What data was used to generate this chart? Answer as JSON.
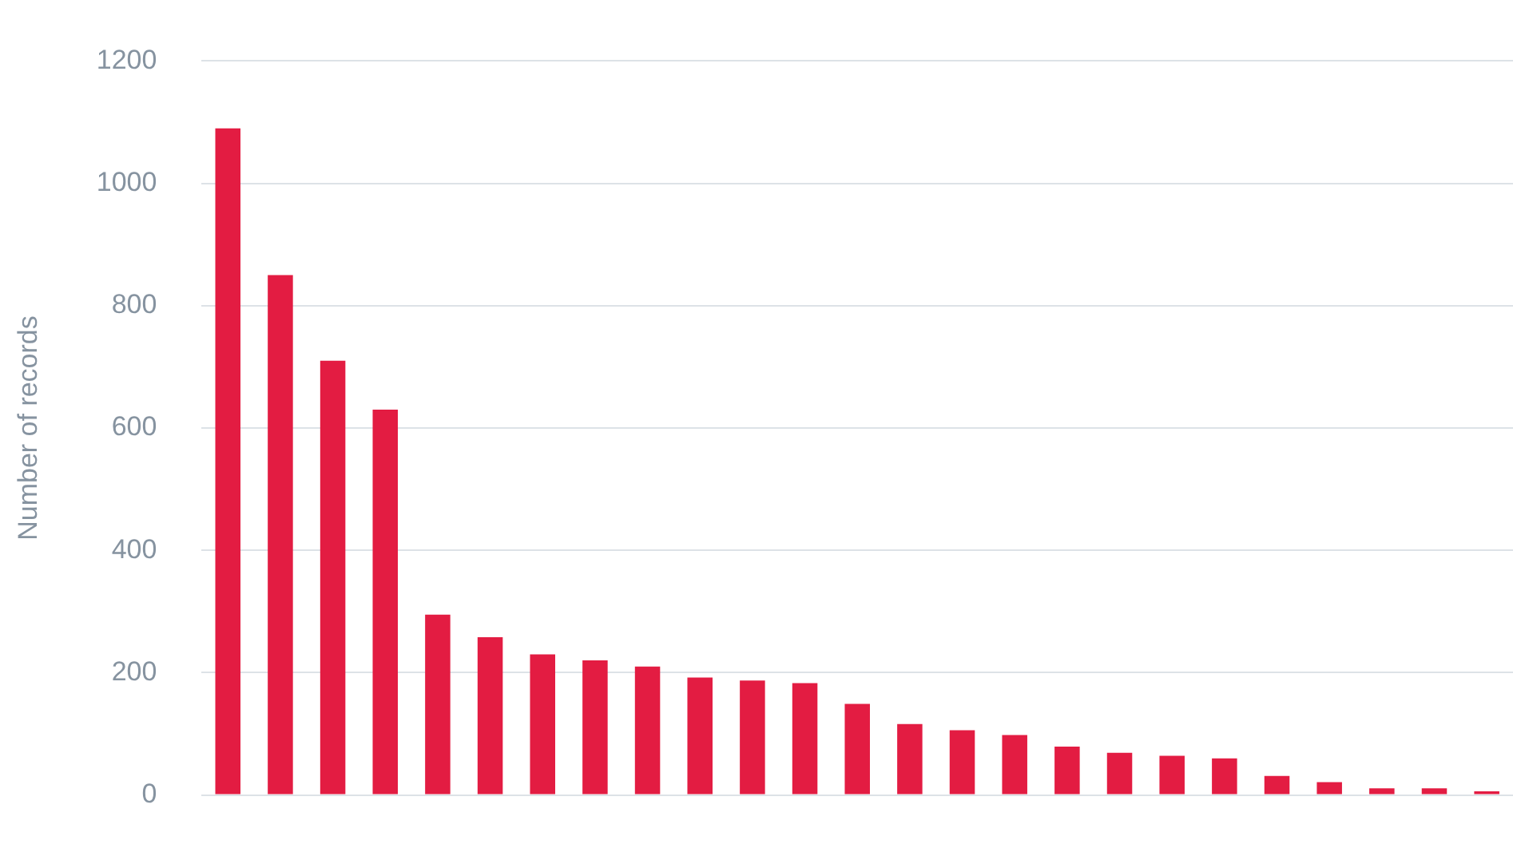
{
  "chart_data": {
    "type": "bar",
    "ylabel": "Number of records",
    "categories": [
      null,
      null,
      null,
      null,
      null,
      null,
      null,
      null,
      null,
      null,
      null,
      null,
      null,
      null,
      null,
      null,
      null,
      null,
      null,
      null,
      null,
      null,
      null,
      null,
      null
    ],
    "values": [
      1090,
      850,
      710,
      630,
      295,
      258,
      230,
      220,
      210,
      192,
      187,
      183,
      149,
      116,
      106,
      98,
      79,
      69,
      64,
      60,
      31,
      21,
      11,
      11,
      6
    ],
    "color": "#e31c42",
    "ylim": [
      0,
      1200
    ],
    "yticks": [
      0,
      200,
      400,
      600,
      800,
      1000,
      1200
    ],
    "grid": "y",
    "legend": false,
    "tick_labels": "y"
  }
}
